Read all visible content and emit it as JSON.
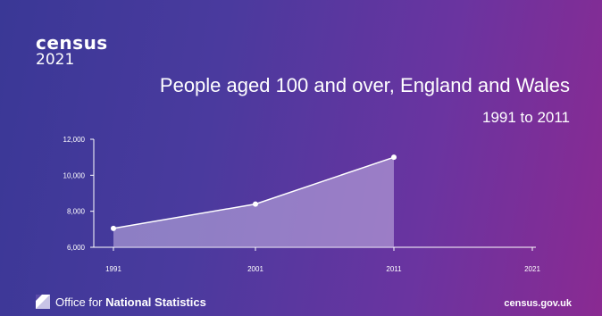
{
  "logo": {
    "word": "census",
    "year": "2021"
  },
  "chart_data": {
    "type": "area",
    "title": "People aged 100 and over, England and Wales",
    "subtitle": "1991 to 2011",
    "categories": [
      "1991",
      "2001",
      "2011",
      "2021"
    ],
    "series": [
      {
        "values": [
          7050,
          8400,
          11000,
          null
        ]
      }
    ],
    "yticks": [
      "6,000",
      "8,000",
      "10,000",
      "12,000"
    ],
    "ylim": [
      6000,
      12000
    ],
    "colors": {
      "line": "#ffffff",
      "fill": "#c9b8e6"
    }
  },
  "footer": {
    "org_prefix": "Office for ",
    "org_bold": "National Statistics",
    "site": "census.gov.uk"
  }
}
